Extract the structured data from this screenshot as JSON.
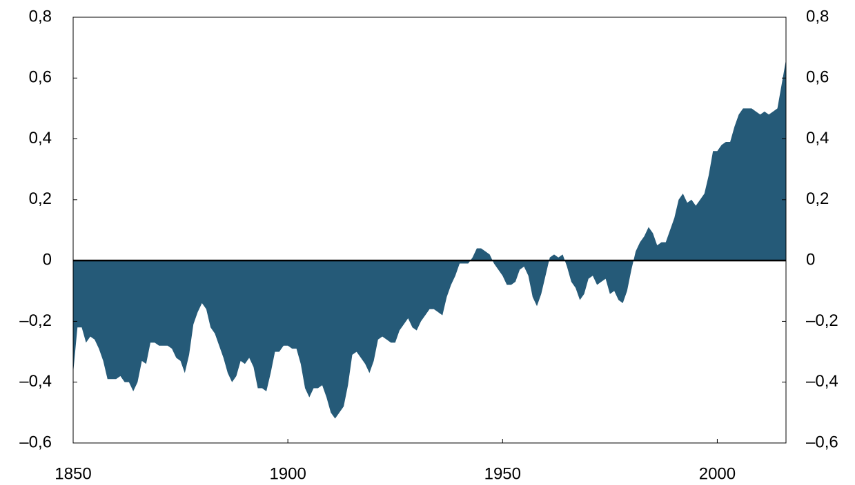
{
  "chart_data": {
    "type": "area",
    "color": "#255a78",
    "x": [
      1850,
      1851,
      1852,
      1853,
      1854,
      1855,
      1856,
      1857,
      1858,
      1859,
      1860,
      1861,
      1862,
      1863,
      1864,
      1865,
      1866,
      1867,
      1868,
      1869,
      1870,
      1871,
      1872,
      1873,
      1874,
      1875,
      1876,
      1877,
      1878,
      1879,
      1880,
      1881,
      1882,
      1883,
      1884,
      1885,
      1886,
      1887,
      1888,
      1889,
      1890,
      1891,
      1892,
      1893,
      1894,
      1895,
      1896,
      1897,
      1898,
      1899,
      1900,
      1901,
      1902,
      1903,
      1904,
      1905,
      1906,
      1907,
      1908,
      1909,
      1910,
      1911,
      1912,
      1913,
      1914,
      1915,
      1916,
      1917,
      1918,
      1919,
      1920,
      1921,
      1922,
      1923,
      1924,
      1925,
      1926,
      1927,
      1928,
      1929,
      1930,
      1931,
      1932,
      1933,
      1934,
      1935,
      1936,
      1937,
      1938,
      1939,
      1940,
      1941,
      1942,
      1943,
      1944,
      1945,
      1946,
      1947,
      1948,
      1949,
      1950,
      1951,
      1952,
      1953,
      1954,
      1955,
      1956,
      1957,
      1958,
      1959,
      1960,
      1961,
      1962,
      1963,
      1964,
      1965,
      1966,
      1967,
      1968,
      1969,
      1970,
      1971,
      1972,
      1973,
      1974,
      1975,
      1976,
      1977,
      1978,
      1979,
      1980,
      1981,
      1982,
      1983,
      1984,
      1985,
      1986,
      1987,
      1988,
      1989,
      1990,
      1991,
      1992,
      1993,
      1994,
      1995,
      1996,
      1997,
      1998,
      1999,
      2000,
      2001,
      2002,
      2003,
      2004,
      2005,
      2006,
      2007,
      2008,
      2009,
      2010,
      2011,
      2012,
      2013,
      2014,
      2015,
      2016
    ],
    "values": [
      -0.37,
      -0.22,
      -0.22,
      -0.27,
      -0.25,
      -0.26,
      -0.29,
      -0.33,
      -0.39,
      -0.39,
      -0.39,
      -0.38,
      -0.4,
      -0.4,
      -0.43,
      -0.4,
      -0.33,
      -0.34,
      -0.27,
      -0.27,
      -0.28,
      -0.28,
      -0.28,
      -0.29,
      -0.32,
      -0.33,
      -0.37,
      -0.31,
      -0.21,
      -0.17,
      -0.14,
      -0.16,
      -0.22,
      -0.24,
      -0.28,
      -0.32,
      -0.37,
      -0.4,
      -0.38,
      -0.33,
      -0.34,
      -0.32,
      -0.35,
      -0.42,
      -0.42,
      -0.43,
      -0.37,
      -0.3,
      -0.3,
      -0.28,
      -0.28,
      -0.29,
      -0.29,
      -0.34,
      -0.42,
      -0.45,
      -0.42,
      -0.42,
      -0.41,
      -0.45,
      -0.5,
      -0.52,
      -0.5,
      -0.48,
      -0.41,
      -0.31,
      -0.3,
      -0.32,
      -0.34,
      -0.37,
      -0.33,
      -0.26,
      -0.25,
      -0.26,
      -0.27,
      -0.27,
      -0.23,
      -0.21,
      -0.19,
      -0.22,
      -0.23,
      -0.2,
      -0.18,
      -0.16,
      -0.16,
      -0.17,
      -0.18,
      -0.12,
      -0.08,
      -0.05,
      -0.01,
      -0.01,
      -0.01,
      0.01,
      0.04,
      0.04,
      0.03,
      0.02,
      -0.01,
      -0.03,
      -0.05,
      -0.08,
      -0.08,
      -0.07,
      -0.03,
      -0.02,
      -0.05,
      -0.12,
      -0.15,
      -0.11,
      -0.05,
      0.01,
      0.02,
      0.01,
      0.02,
      -0.02,
      -0.07,
      -0.09,
      -0.13,
      -0.11,
      -0.06,
      -0.05,
      -0.08,
      -0.07,
      -0.06,
      -0.11,
      -0.1,
      -0.13,
      -0.14,
      -0.1,
      -0.03,
      0.03,
      0.06,
      0.08,
      0.11,
      0.09,
      0.05,
      0.06,
      0.06,
      0.1,
      0.14,
      0.2,
      0.22,
      0.19,
      0.2,
      0.18,
      0.2,
      0.22,
      0.28,
      0.36,
      0.36,
      0.38,
      0.39,
      0.39,
      0.44,
      0.48,
      0.5,
      0.5,
      0.5,
      0.49,
      0.48,
      0.49,
      0.48,
      0.49,
      0.5,
      0.58,
      0.66
    ],
    "xlim": [
      1850,
      2016
    ],
    "xticks": [
      1850,
      1900,
      1950,
      2000
    ],
    "ylim": [
      -0.6,
      0.8
    ],
    "yticks": [
      {
        "value": -0.6,
        "label": "–0,6"
      },
      {
        "value": -0.4,
        "label": "–0,4"
      },
      {
        "value": -0.2,
        "label": "–0,2"
      },
      0,
      {
        "value": 0.2,
        "label": "0,2"
      },
      {
        "value": 0.4,
        "label": "0,4"
      },
      {
        "value": 0.6,
        "label": "0,6"
      },
      {
        "value": 0.8,
        "label": "0,8"
      }
    ]
  }
}
